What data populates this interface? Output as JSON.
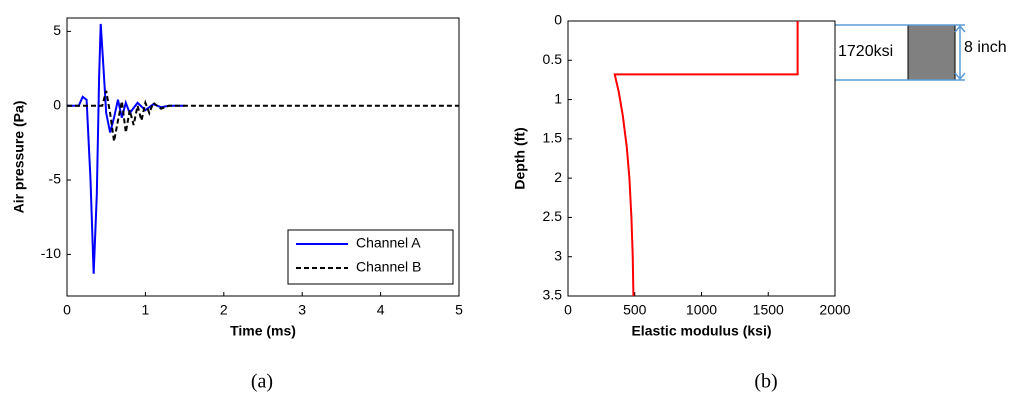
{
  "chart_data": [
    {
      "type": "line",
      "xlabel": "Time (ms)",
      "ylabel": "Air pressure (Pa)",
      "caption": "(a)",
      "xlim": [
        0,
        5
      ],
      "ylim": [
        -12.8,
        5.9
      ],
      "xticks": [
        0,
        1,
        2,
        3,
        4,
        5
      ],
      "yticks": [
        -10,
        -5,
        0,
        5
      ],
      "grid": false,
      "legend": "lower right",
      "series": [
        {
          "name": "Channel A",
          "color": "#0000ff",
          "linestyle": "solid",
          "x": [
            0,
            0.15,
            0.2,
            0.25,
            0.3,
            0.34,
            0.38,
            0.41,
            0.43,
            0.46,
            0.5,
            0.55,
            0.6,
            0.65,
            0.7,
            0.75,
            0.8,
            0.9,
            1.0,
            1.1,
            1.2,
            1.3,
            1.5
          ],
          "values": [
            0,
            0,
            0.6,
            0.4,
            -5,
            -11.3,
            -6,
            2,
            5.5,
            3,
            -0.5,
            -1.8,
            -0.8,
            0.4,
            -0.8,
            0.2,
            -0.5,
            0.2,
            -0.3,
            0.1,
            -0.1,
            0,
            0
          ]
        },
        {
          "name": "Channel B",
          "color": "#000000",
          "linestyle": "dashed",
          "x": [
            0,
            0.45,
            0.5,
            0.55,
            0.6,
            0.65,
            0.7,
            0.75,
            0.8,
            0.85,
            0.9,
            0.95,
            1.0,
            1.05,
            1.1,
            1.2,
            1.3,
            5
          ],
          "values": [
            0,
            0,
            1.0,
            -0.5,
            -2.4,
            -1.0,
            0.3,
            -1.8,
            -0.3,
            -1.3,
            0,
            -1.0,
            0.2,
            -0.5,
            0.2,
            -0.2,
            0,
            0
          ]
        }
      ]
    },
    {
      "type": "line",
      "xlabel": "Elastic modulus (ksi)",
      "ylabel": "Depth (ft)",
      "caption": "(b)",
      "xlim": [
        0,
        2000
      ],
      "ylim": [
        0,
        3.5
      ],
      "y_inverted": true,
      "xticks": [
        0,
        500,
        1000,
        1500,
        2000
      ],
      "yticks": [
        0,
        0.5,
        1,
        1.5,
        2,
        2.5,
        3,
        3.5
      ],
      "grid": false,
      "annotations": [
        "1720ksi",
        "8 inch"
      ],
      "series": [
        {
          "color": "#ff0000",
          "linestyle": "solid",
          "x": [
            1720,
            1720,
            350,
            380,
            410,
            440,
            460,
            475,
            485,
            490
          ],
          "values": [
            0,
            0.68,
            0.68,
            0.9,
            1.2,
            1.6,
            2.0,
            2.5,
            3.0,
            3.5
          ]
        }
      ]
    }
  ]
}
